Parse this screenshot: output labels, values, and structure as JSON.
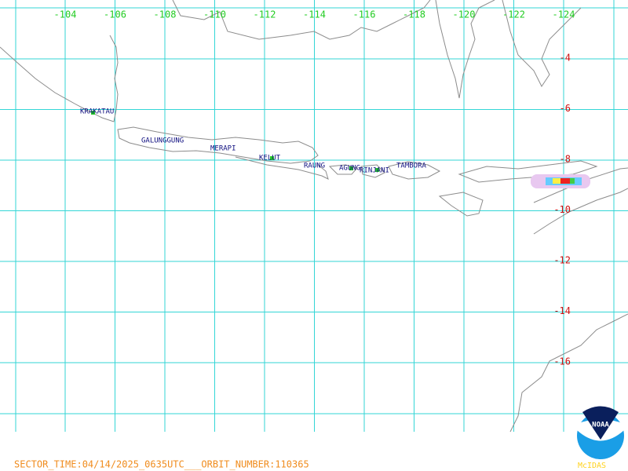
{
  "map": {
    "longitude_labels": [
      "-104",
      "-106",
      "-108",
      "-110",
      "-112",
      "-114",
      "-116",
      "-118",
      "-120",
      "-122",
      "-124"
    ],
    "latitude_labels": [
      "-4",
      "-6",
      "-8",
      "-10",
      "-12",
      "-14",
      "-16"
    ],
    "volcanoes": [
      "KRAKATAU",
      "GALUNGGUNG",
      "MERAPI",
      "KELUT",
      "RAUNG",
      "AGUNG",
      "RINJANI",
      "TAMBORA"
    ],
    "footer": "SECTOR_TIME:04/14/2025_0635UTC___ORBIT_NUMBER:110365",
    "logo_text": "NOAA",
    "logo_caption": "McIDAS"
  }
}
